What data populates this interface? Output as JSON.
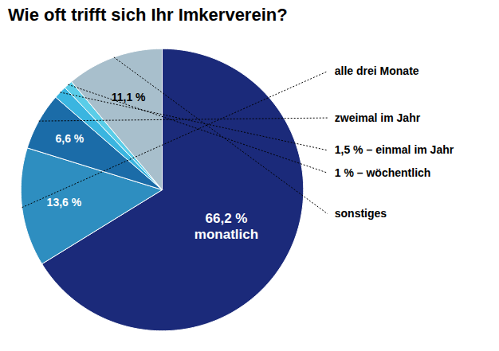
{
  "chart_data": {
    "type": "pie",
    "title": "Wie oft trifft sich Ihr Imkerverein?",
    "categories": [
      null,
      "alle drei Monate",
      "zweimal im Jahr",
      "1,5 % – einmal im Jahr",
      "1 % – wöchentlich",
      "sonstiges"
    ],
    "values": [
      66.2,
      13.6,
      6.6,
      1.5,
      1.0,
      11.1
    ],
    "value_labels": [
      "66,2 %\nmonatlich",
      "13,6 %",
      "6,6 %",
      null,
      null,
      "11,1 %"
    ],
    "colors": [
      "#1b2a7a",
      "#2e8ec0",
      "#1b6ca8",
      "#3ab5e0",
      "#5acde8",
      "#a8bfcc"
    ],
    "data_labels": true,
    "legend": "right"
  }
}
